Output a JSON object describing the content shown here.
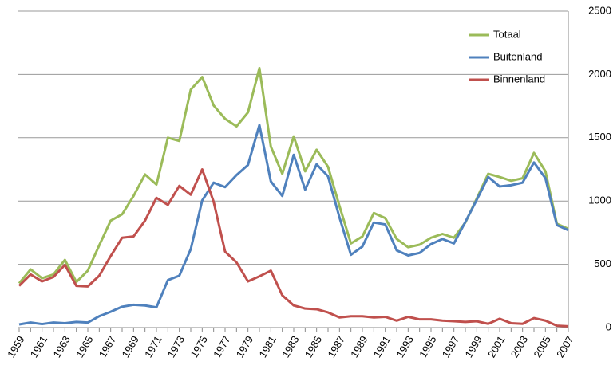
{
  "chart_data": {
    "type": "line",
    "categories": [
      "1959",
      null,
      "1961",
      null,
      "1963",
      null,
      "1965",
      null,
      "1967",
      null,
      "1969",
      null,
      "1971",
      null,
      "1973",
      null,
      "1975",
      null,
      "1977",
      null,
      "1979",
      null,
      "1981",
      null,
      "1983",
      null,
      "1985",
      null,
      "1987",
      null,
      "1989",
      null,
      "1991",
      null,
      "1993",
      null,
      "1995",
      null,
      "1997",
      null,
      "1999",
      null,
      "2001",
      null,
      "2003",
      null,
      "2005",
      null,
      "2007"
    ],
    "series": [
      {
        "name": "Totaal",
        "color": "#9bbb59",
        "values": [
          350,
          460,
          390,
          420,
          535,
          360,
          450,
          650,
          845,
          895,
          1040,
          1210,
          1130,
          1500,
          1475,
          1880,
          1980,
          1755,
          1650,
          1590,
          1700,
          2050,
          1430,
          1215,
          1510,
          1235,
          1405,
          1270,
          960,
          665,
          720,
          905,
          865,
          700,
          635,
          655,
          710,
          740,
          710,
          830,
          1020,
          1215,
          1190,
          1160,
          1180,
          1380,
          1235,
          820,
          780
        ]
      },
      {
        "name": "Buitenland",
        "color": "#4f81bd",
        "values": [
          25,
          40,
          28,
          40,
          35,
          45,
          40,
          90,
          125,
          165,
          180,
          175,
          160,
          375,
          410,
          620,
          1005,
          1145,
          1110,
          1205,
          1285,
          1600,
          1155,
          1040,
          1365,
          1090,
          1290,
          1195,
          870,
          575,
          640,
          830,
          815,
          610,
          570,
          590,
          660,
          700,
          665,
          835,
          1010,
          1190,
          1115,
          1125,
          1145,
          1305,
          1180,
          810,
          770
        ]
      },
      {
        "name": "Binnenland",
        "color": "#c0504d",
        "values": [
          330,
          420,
          365,
          400,
          495,
          330,
          325,
          410,
          565,
          710,
          720,
          845,
          1025,
          970,
          1120,
          1050,
          1250,
          995,
          600,
          515,
          365,
          405,
          450,
          255,
          175,
          150,
          145,
          120,
          80,
          90,
          90,
          80,
          85,
          55,
          85,
          65,
          65,
          55,
          50,
          45,
          50,
          30,
          70,
          35,
          30,
          75,
          55,
          15,
          10
        ]
      }
    ],
    "ylim": [
      0,
      2500
    ],
    "yticks": [
      0,
      500,
      1000,
      1500,
      2000,
      2500
    ],
    "grid": true,
    "legend": "top-right"
  }
}
